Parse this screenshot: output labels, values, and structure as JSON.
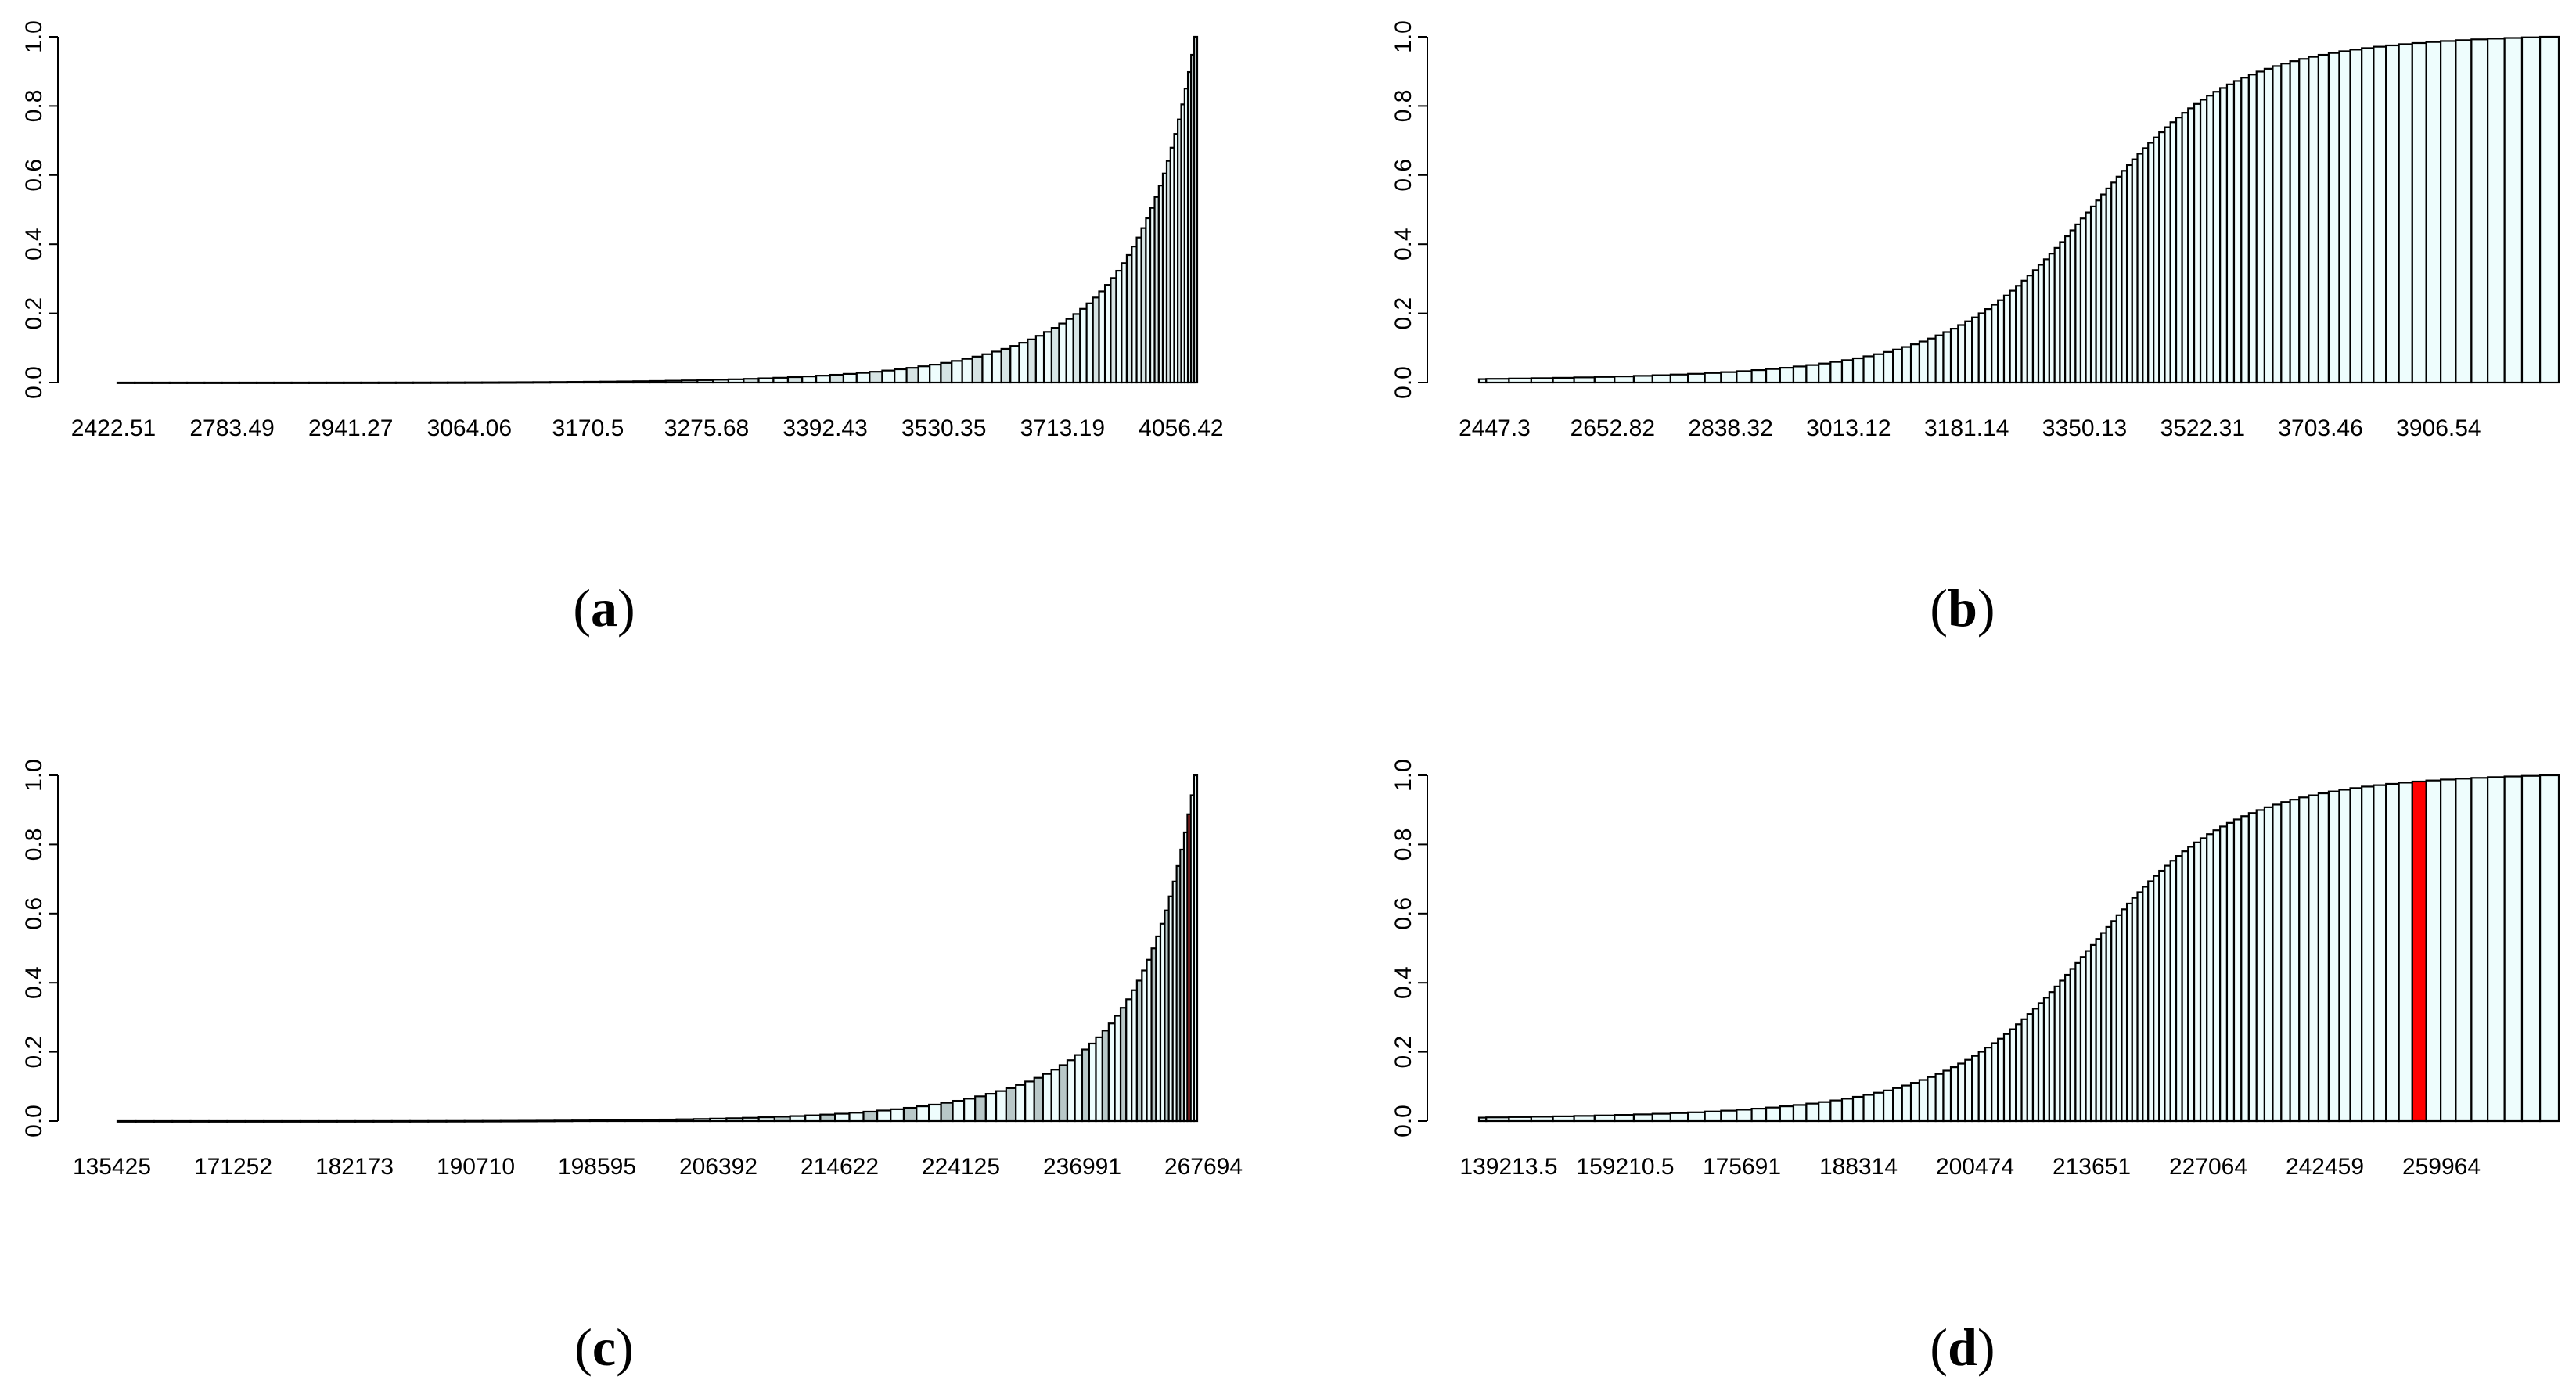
{
  "chart_data": [
    {
      "id": "a",
      "label": "a",
      "type": "bar",
      "title": "",
      "xlabel": "",
      "ylabel": "",
      "ylim": [
        0,
        1
      ],
      "yticks": [
        "0.0",
        "0.2",
        "0.4",
        "0.6",
        "0.8",
        "1.0"
      ],
      "xtick_labels": [
        "2422.51",
        "2783.49",
        "2941.27",
        "3064.06",
        "3170.5",
        "3275.68",
        "3392.43",
        "3530.35",
        "3713.19",
        "4056.42"
      ],
      "n_bars": 94,
      "curve": "convex",
      "curve_exponent": 5,
      "curve_offset": 0,
      "fill": "#eefdfd",
      "fill_secondary": "#d6e4e4",
      "highlight_index": null,
      "highlight_color": null
    },
    {
      "id": "b",
      "label": "b",
      "type": "bar",
      "title": "",
      "xlabel": "",
      "ylabel": "",
      "ylim": [
        0,
        1
      ],
      "yticks": [
        "0.0",
        "0.2",
        "0.4",
        "0.6",
        "0.8",
        "1.0"
      ],
      "xtick_labels": [
        "2447.3",
        "2652.82",
        "2838.32",
        "3013.12",
        "3181.14",
        "3350.13",
        "3522.31",
        "3703.46",
        "3906.54"
      ],
      "n_bars": 110,
      "curve": "normal_cdf",
      "curve_exponent": null,
      "curve_offset": 0.01,
      "fill": "#eefdfd",
      "fill_secondary": "#eefdfd",
      "highlight_index": null,
      "highlight_color": null
    },
    {
      "id": "c",
      "label": "c",
      "type": "bar",
      "title": "",
      "xlabel": "",
      "ylabel": "",
      "ylim": [
        0,
        1
      ],
      "yticks": [
        "0.0",
        "0.2",
        "0.4",
        "0.6",
        "0.8",
        "1.0"
      ],
      "xtick_labels": [
        "135425",
        "171252",
        "182173",
        "190710",
        "198595",
        "206392",
        "214622",
        "224125",
        "236991",
        "267694"
      ],
      "n_bars": 88,
      "curve": "convex",
      "curve_exponent": 5.2,
      "curve_offset": 0,
      "fill": "#eefdfd",
      "fill_secondary": "#b8c8c8",
      "highlight_index": 85,
      "highlight_color": "#c83232"
    },
    {
      "id": "d",
      "label": "d",
      "type": "bar",
      "title": "",
      "xlabel": "",
      "ylabel": "",
      "ylim": [
        0,
        1
      ],
      "yticks": [
        "0.0",
        "0.2",
        "0.4",
        "0.6",
        "0.8",
        "1.0"
      ],
      "xtick_labels": [
        "139213.5",
        "159210.5",
        "175691",
        "188314",
        "200474",
        "213651",
        "227064",
        "242459",
        "259964"
      ],
      "n_bars": 110,
      "curve": "normal_cdf",
      "curve_exponent": null,
      "curve_offset": 0.01,
      "fill": "#eefdfd",
      "fill_secondary": "#eefdfd",
      "highlight_index": 101,
      "highlight_color": "#ff0000"
    }
  ]
}
